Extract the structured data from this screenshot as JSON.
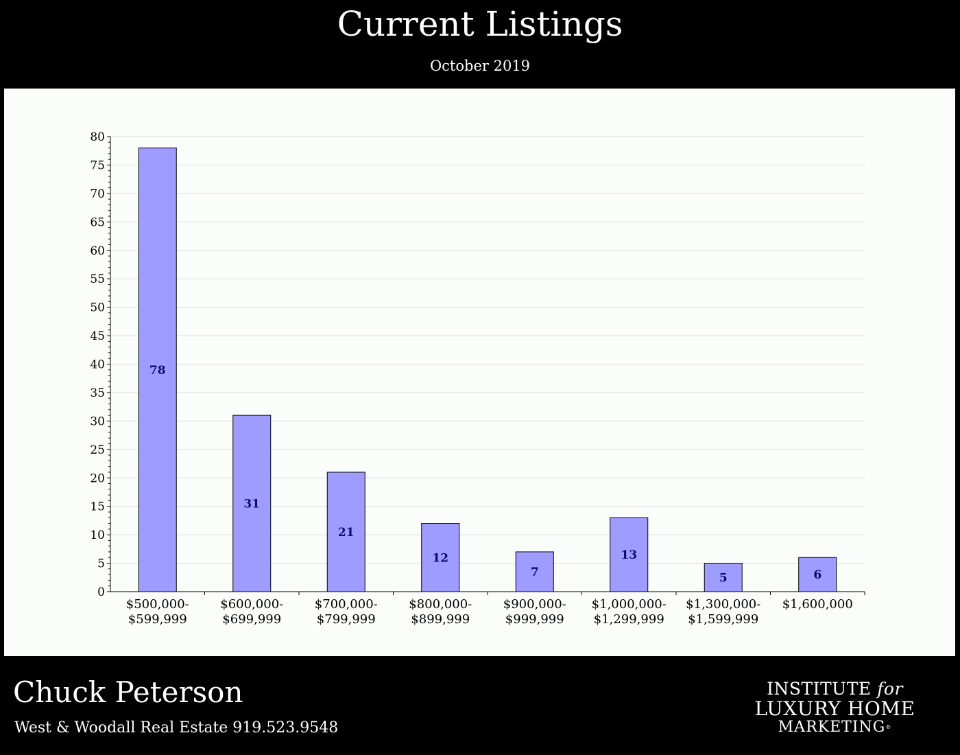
{
  "header": {
    "title": "Current Listings",
    "subtitle": "October 2019"
  },
  "colors": {
    "background": "#000000",
    "plot_background": "#fbfdfb",
    "bar_fill": "#9e9dff",
    "bar_stroke": "#000000",
    "bar_label": "#0a0a6e",
    "gridline": "#dcdcdc"
  },
  "chart_data": {
    "type": "bar",
    "title": "",
    "xlabel": "",
    "ylabel": "",
    "categories": [
      [
        "$500,000-",
        "$599,999"
      ],
      [
        "$600,000-",
        "$699,999"
      ],
      [
        "$700,000-",
        "$799,999"
      ],
      [
        "$800,000-",
        "$899,999"
      ],
      [
        "$900,000-",
        "$999,999"
      ],
      [
        "$1,000,000-",
        "$1,299,999"
      ],
      [
        "$1,300,000-",
        "$1,599,999"
      ],
      [
        "$1,600,000"
      ]
    ],
    "values": [
      78,
      31,
      21,
      12,
      7,
      13,
      5,
      6
    ],
    "ylim": [
      0,
      80
    ],
    "yticks": [
      0,
      5,
      10,
      15,
      20,
      25,
      30,
      35,
      40,
      45,
      50,
      55,
      60,
      65,
      70,
      75,
      80
    ],
    "grid": true,
    "legend": "none",
    "data_labels": true
  },
  "footer": {
    "agent_name": "Chuck Peterson",
    "agent_details": "West & Woodall Real Estate 919.523.9548",
    "logo": {
      "line1_main": "INSTITUTE",
      "line1_for": "for",
      "line2": "LUXURY HOME",
      "line3": "MARKETING",
      "registered": "®"
    }
  }
}
